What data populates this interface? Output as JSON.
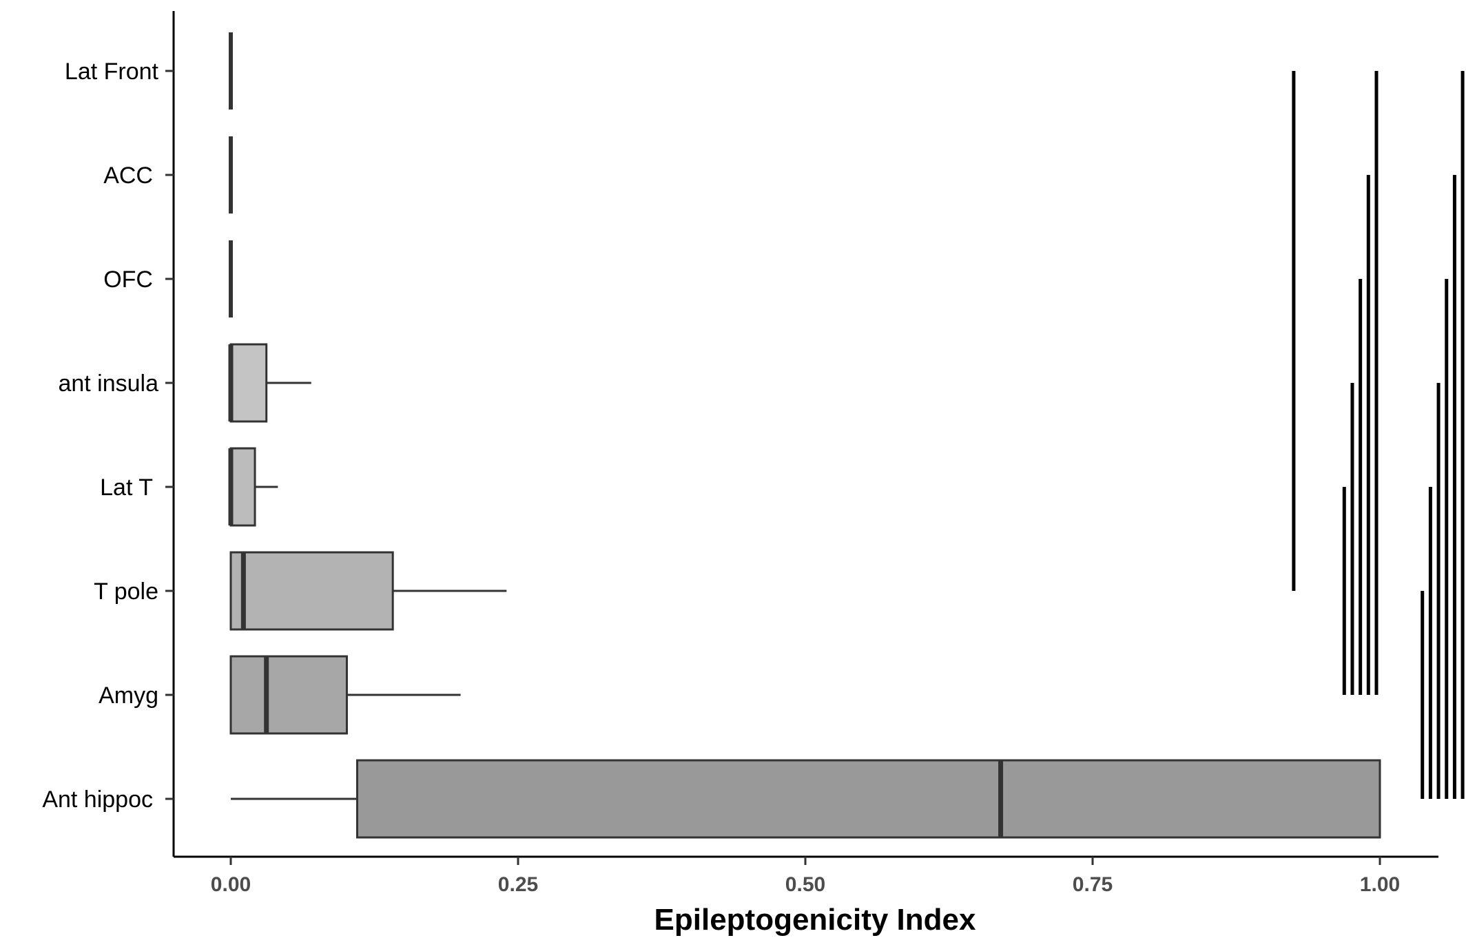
{
  "chart_data": {
    "type": "boxplot",
    "title": "",
    "xlabel": "Epileptogenicity Index",
    "ylabel": "",
    "xlim": [
      -0.05,
      1.075
    ],
    "x_ticks": [
      0.0,
      0.25,
      0.5,
      0.75,
      1.0
    ],
    "x_tick_labels": [
      "0.00",
      "0.25",
      "0.50",
      "0.75",
      "1.00"
    ],
    "categories": [
      "Lat Front",
      "ACC",
      "OFC",
      "ant insula",
      "Lat T",
      "T pole",
      "Amyg",
      "Ant hippoc"
    ],
    "box_colors": [
      "#d0d0d0",
      "#cbcbcb",
      "#c6c6c6",
      "#c4c4c4",
      "#bcbcbc",
      "#b3b3b3",
      "#a7a7a7",
      "#999999"
    ],
    "boxes": [
      {
        "category": "Lat Front",
        "min": 0.0,
        "q1": 0.0,
        "median": 0.0,
        "q3": 0.0,
        "max": 0.0
      },
      {
        "category": "ACC",
        "min": 0.0,
        "q1": 0.0,
        "median": 0.0,
        "q3": 0.0,
        "max": 0.0
      },
      {
        "category": "OFC",
        "min": 0.0,
        "q1": 0.0,
        "median": 0.0,
        "q3": 0.0,
        "max": 0.0
      },
      {
        "category": "ant insula",
        "min": 0.0,
        "q1": 0.0,
        "median": 0.0,
        "q3": 0.031,
        "max": 0.07
      },
      {
        "category": "Lat T",
        "min": 0.0,
        "q1": 0.0,
        "median": 0.0,
        "q3": 0.021,
        "max": 0.041
      },
      {
        "category": "T pole",
        "min": 0.0,
        "q1": 0.0,
        "median": 0.011,
        "q3": 0.141,
        "max": 0.24
      },
      {
        "category": "Amyg",
        "min": 0.0,
        "q1": 0.0,
        "median": 0.031,
        "q3": 0.101,
        "max": 0.2
      },
      {
        "category": "Ant hippoc",
        "min": 0.0,
        "q1": 0.11,
        "median": 0.67,
        "q3": 1.0,
        "max": 1.0
      }
    ],
    "brackets": [
      {
        "x": 0.925,
        "from": "Lat Front",
        "to": "T pole"
      },
      {
        "x": 0.997,
        "from": "Lat Front",
        "to": "Amyg"
      },
      {
        "x": 0.99,
        "from": "ACC",
        "to": "Amyg"
      },
      {
        "x": 0.983,
        "from": "OFC",
        "to": "Amyg"
      },
      {
        "x": 0.976,
        "from": "ant insula",
        "to": "Amyg"
      },
      {
        "x": 0.969,
        "from": "Lat T",
        "to": "Amyg"
      },
      {
        "x": 1.072,
        "from": "Lat Front",
        "to": "Ant hippoc"
      },
      {
        "x": 1.065,
        "from": "ACC",
        "to": "Ant hippoc"
      },
      {
        "x": 1.058,
        "from": "OFC",
        "to": "Ant hippoc"
      },
      {
        "x": 1.051,
        "from": "ant insula",
        "to": "Ant hippoc"
      },
      {
        "x": 1.044,
        "from": "Lat T",
        "to": "Ant hippoc"
      },
      {
        "x": 1.037,
        "from": "T pole",
        "to": "Ant hippoc"
      }
    ],
    "grid": false,
    "legend": "none"
  }
}
